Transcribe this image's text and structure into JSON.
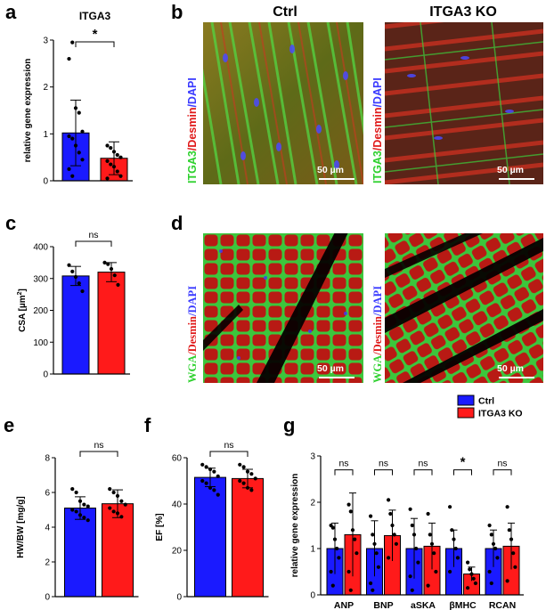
{
  "panel_letters": {
    "a": "a",
    "b": "b",
    "c": "c",
    "d": "d",
    "e": "e",
    "f": "f",
    "g": "g"
  },
  "panel_b": {
    "ctrl_title": "Ctrl",
    "ko_title": "ITGA3 KO",
    "stain_label": {
      "itga3": "ITGA3",
      "sep1": "/",
      "desmin": "Desmin",
      "sep2": "/",
      "dapi": "DAPI"
    },
    "scale_bar": "50 µm"
  },
  "panel_d": {
    "stain_label": {
      "wga": "WGA",
      "sep1": "/",
      "desmin": "Desmin",
      "sep2": "/",
      "dapi": "DAPI"
    },
    "scale_bar": "50 µm"
  },
  "colors": {
    "ctrl": "#1a1aff",
    "ko": "#ff1a1a",
    "itga3_green": "#2fd12f",
    "desmin_red": "#e01a1a",
    "dapi_blue": "#3a3aff"
  },
  "chart_data": [
    {
      "panel": "a",
      "type": "bar",
      "title": "ITGA3",
      "ylabel": "relative gene expression",
      "ylim": [
        0,
        3
      ],
      "yticks": [
        0,
        1,
        2,
        3
      ],
      "categories": [
        "Ctrl",
        "ITGA3 KO"
      ],
      "values": [
        1.02,
        0.48
      ],
      "errors": [
        0.7,
        0.35
      ],
      "points": [
        [
          2.6,
          2.95,
          1.55,
          1.45,
          1.05,
          0.95,
          0.9,
          0.75,
          0.6,
          0.45,
          0.25,
          0.1
        ],
        [
          0.75,
          0.7,
          0.62,
          0.55,
          0.5,
          0.42,
          0.35,
          0.3,
          0.2,
          0.1,
          0.05
        ]
      ],
      "significance": "*"
    },
    {
      "panel": "c",
      "type": "bar",
      "title": "",
      "ylabel": "CSA [µm²]",
      "ylabel_main": "CSA [µm",
      "ylabel_sup": "2",
      "ylabel_end": "]",
      "ylim": [
        0,
        400
      ],
      "yticks": [
        0,
        100,
        200,
        300,
        400
      ],
      "categories": [
        "Ctrl",
        "ITGA3 KO"
      ],
      "values": [
        308,
        320
      ],
      "errors": [
        30,
        30
      ],
      "points": [
        [
          342,
          322,
          305,
          285,
          260
        ],
        [
          350,
          345,
          330,
          310,
          280
        ]
      ],
      "significance": "ns"
    },
    {
      "panel": "e",
      "type": "bar",
      "title": "",
      "ylabel": "HW/BW [mg/g]",
      "ylim": [
        0,
        8
      ],
      "yticks": [
        0,
        2,
        4,
        6,
        8
      ],
      "categories": [
        "Ctrl",
        "ITGA3 KO"
      ],
      "values": [
        5.1,
        5.35
      ],
      "errors": [
        0.65,
        0.8
      ],
      "points": [
        [
          6.2,
          6.0,
          5.5,
          5.3,
          5.2,
          5.0,
          4.9,
          4.7,
          4.55,
          4.4
        ],
        [
          6.2,
          6.0,
          5.8,
          5.5,
          5.3,
          5.1,
          4.9,
          4.8,
          4.6
        ]
      ],
      "significance": "ns"
    },
    {
      "panel": "f",
      "type": "bar",
      "title": "",
      "ylabel": "EF [%]",
      "ylim": [
        0,
        60
      ],
      "yticks": [
        0,
        20,
        40,
        60
      ],
      "categories": [
        "Ctrl",
        "ITGA3 KO"
      ],
      "values": [
        51.5,
        51.0
      ],
      "errors": [
        4,
        4
      ],
      "points": [
        [
          57,
          56,
          55,
          54,
          52,
          50,
          49,
          47,
          46,
          44
        ],
        [
          57,
          56,
          54,
          53,
          51,
          50,
          49,
          47,
          46
        ]
      ],
      "significance": "ns"
    },
    {
      "panel": "g",
      "type": "bar",
      "title": "",
      "ylabel": "relative gene expression",
      "ylim": [
        0,
        3
      ],
      "yticks": [
        0,
        1,
        2,
        3
      ],
      "categories": [
        "ANP",
        "BNP",
        "aSKA",
        "βMHC",
        "RCAN"
      ],
      "series": [
        {
          "name": "Ctrl",
          "values": [
            1.0,
            1.0,
            1.0,
            1.0,
            1.0
          ],
          "errors": [
            0.55,
            0.6,
            0.65,
            0.4,
            0.4
          ],
          "points": [
            [
              1.5,
              1.45,
              1.2,
              1.0,
              0.8,
              0.5,
              0.2
            ],
            [
              1.7,
              1.3,
              1.1,
              0.9,
              0.6,
              0.25,
              0.1
            ],
            [
              1.85,
              1.5,
              1.3,
              1.0,
              0.7,
              0.4,
              0.1
            ],
            [
              1.9,
              1.4,
              1.2,
              1.0,
              0.8,
              0.5
            ],
            [
              1.5,
              1.3,
              1.1,
              1.0,
              0.8,
              0.5,
              0.25
            ]
          ]
        },
        {
          "name": "ITGA3 KO",
          "values": [
            1.3,
            1.28,
            1.05,
            0.45,
            1.05
          ],
          "errors": [
            0.9,
            0.55,
            0.5,
            0.15,
            0.5
          ],
          "points": [
            [
              1.95,
              1.8,
              1.4,
              1.2,
              0.9,
              0.5,
              0.1
            ],
            [
              2.05,
              1.75,
              1.5,
              1.3,
              1.1,
              0.8
            ],
            [
              1.75,
              1.3,
              1.1,
              0.9,
              0.5,
              0.2
            ],
            [
              0.7,
              0.55,
              0.45,
              0.35,
              0.25,
              0.15
            ],
            [
              1.9,
              1.4,
              1.2,
              0.9,
              0.6,
              0.3
            ]
          ]
        }
      ],
      "significance": [
        "ns",
        "ns",
        "ns",
        "*",
        "ns"
      ],
      "legend": "top-right"
    }
  ]
}
